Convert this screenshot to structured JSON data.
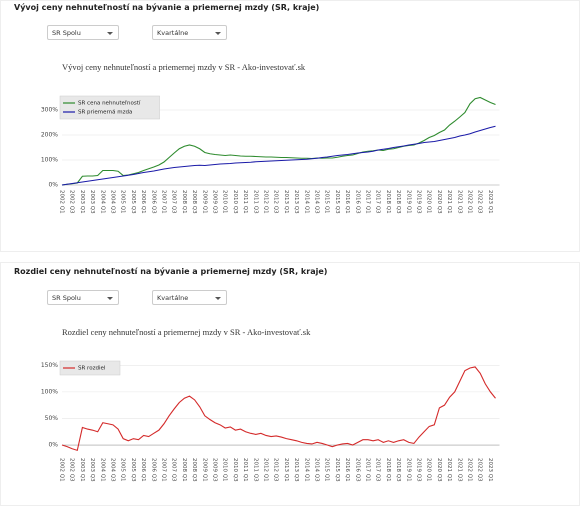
{
  "chart_data": [
    {
      "type": "line",
      "heading": "Vývoj ceny nehnuteľností na bývanie a priemernej mzdy (SR, kraje)",
      "filters": [
        "SR Spolu",
        "Kvartálne"
      ],
      "title": "Vývoj ceny nehnuteľností a priemernej mzdy v SR - Ako-investovať.sk",
      "categories": [
        "2002 Q1",
        null,
        "2002 Q3",
        null,
        "2003 Q1",
        null,
        "2003 Q3",
        null,
        "2004 Q1",
        null,
        "2004 Q3",
        null,
        "2005 Q1",
        null,
        "2005 Q3",
        null,
        "2006 Q1",
        null,
        "2006 Q3",
        null,
        "2007 Q1",
        null,
        "2007 Q3",
        null,
        "2008 Q1",
        null,
        "2008 Q3",
        null,
        "2009 Q1",
        null,
        "2009 Q3",
        null,
        "2010 Q1",
        null,
        "2010 Q3",
        null,
        "2011 Q1",
        null,
        "2011 Q3",
        null,
        "2012 Q1",
        null,
        "2012 Q3",
        null,
        "2013 Q1",
        null,
        "2013 Q3",
        null,
        "2014 Q1",
        null,
        "2014 Q3",
        null,
        "2015 Q1",
        null,
        "2015 Q3",
        null,
        "2016 Q1",
        null,
        "2016 Q3",
        null,
        "2017 Q1",
        null,
        "2017 Q3",
        null,
        "2018 Q1",
        null,
        "2018 Q3",
        null,
        "2019 Q1",
        null,
        "2019 Q3",
        null,
        "2020 Q1",
        null,
        "2020 Q3",
        null,
        "2021 Q1",
        null,
        "2021 Q3",
        null,
        "2022 Q1",
        null,
        "2022 Q3",
        null,
        "2023 Q1",
        null
      ],
      "series": [
        {
          "name": "SR cena nehnuteľností",
          "color": "#2e8b2e",
          "values": [
            0,
            3,
            5,
            8,
            35,
            36,
            36,
            38,
            58,
            58,
            58,
            55,
            38,
            40,
            45,
            50,
            58,
            65,
            72,
            80,
            92,
            110,
            128,
            145,
            155,
            160,
            155,
            145,
            130,
            125,
            122,
            120,
            118,
            120,
            118,
            116,
            115,
            115,
            114,
            113,
            112,
            112,
            111,
            110,
            110,
            109,
            108,
            107,
            107,
            106,
            108,
            107,
            108,
            108,
            111,
            115,
            118,
            120,
            126,
            132,
            135,
            137,
            140,
            138,
            143,
            145,
            150,
            155,
            158,
            160,
            168,
            178,
            190,
            198,
            210,
            220,
            240,
            255,
            272,
            290,
            325,
            345,
            350,
            340,
            330,
            322
          ]
        },
        {
          "name": "SR priemerná mzda",
          "color": "#1a1aa8",
          "values": [
            0,
            3,
            6,
            9,
            12,
            15,
            18,
            21,
            24,
            27,
            30,
            33,
            36,
            39,
            42,
            46,
            50,
            53,
            56,
            60,
            64,
            67,
            70,
            72,
            74,
            76,
            78,
            79,
            78,
            80,
            82,
            84,
            85,
            86,
            88,
            89,
            90,
            91,
            93,
            94,
            95,
            96,
            97,
            98,
            99,
            100,
            101,
            102,
            103,
            105,
            107,
            110,
            112,
            115,
            118,
            120,
            122,
            125,
            128,
            130,
            132,
            135,
            140,
            143,
            146,
            150,
            153,
            156,
            160,
            163,
            166,
            170,
            172,
            174,
            178,
            182,
            186,
            190,
            196,
            200,
            205,
            212,
            218,
            224,
            230,
            235
          ]
        }
      ],
      "ylim": [
        0,
        360
      ],
      "yticks": [
        {
          "value": 0,
          "label": "0%"
        },
        {
          "value": 100,
          "label": "100%"
        },
        {
          "value": 200,
          "label": "200%"
        },
        {
          "value": 300,
          "label": "300%"
        }
      ],
      "grid": true,
      "legend": "upper left"
    },
    {
      "type": "line",
      "heading": "Rozdiel ceny nehnuteľností na bývanie a priemernej mzdy (SR, kraje)",
      "filters": [
        "SR Spolu",
        "Kvartálne"
      ],
      "title": "Rozdiel ceny nehnuteľností a priemernej mzdy v SR - Ako-investovať.sk",
      "categories": [
        "2002 Q1",
        null,
        "2002 Q3",
        null,
        "2003 Q1",
        null,
        "2003 Q3",
        null,
        "2004 Q1",
        null,
        "2004 Q3",
        null,
        "2005 Q1",
        null,
        "2005 Q3",
        null,
        "2006 Q1",
        null,
        "2006 Q3",
        null,
        "2007 Q1",
        null,
        "2007 Q3",
        null,
        "2008 Q1",
        null,
        "2008 Q3",
        null,
        "2009 Q1",
        null,
        "2009 Q3",
        null,
        "2010 Q1",
        null,
        "2010 Q3",
        null,
        "2011 Q1",
        null,
        "2011 Q3",
        null,
        "2012 Q1",
        null,
        "2012 Q3",
        null,
        "2013 Q1",
        null,
        "2013 Q3",
        null,
        "2014 Q1",
        null,
        "2014 Q3",
        null,
        "2015 Q1",
        null,
        "2015 Q3",
        null,
        "2016 Q1",
        null,
        "2016 Q3",
        null,
        "2017 Q1",
        null,
        "2017 Q3",
        null,
        "2018 Q1",
        null,
        "2018 Q3",
        null,
        "2019 Q1",
        null,
        "2019 Q3",
        null,
        "2020 Q1",
        null,
        "2020 Q3",
        null,
        "2021 Q1",
        null,
        "2021 Q3",
        null,
        "2022 Q1",
        null,
        "2022 Q3",
        null,
        "2023 Q1",
        null
      ],
      "series": [
        {
          "name": "SR rozdiel",
          "color": "#d42a2a",
          "values": [
            0,
            -3,
            -7,
            -10,
            33,
            30,
            28,
            25,
            42,
            40,
            38,
            30,
            12,
            8,
            12,
            10,
            18,
            16,
            22,
            28,
            40,
            55,
            68,
            80,
            88,
            92,
            85,
            72,
            55,
            48,
            42,
            38,
            32,
            34,
            28,
            30,
            25,
            22,
            20,
            22,
            18,
            16,
            17,
            15,
            12,
            10,
            8,
            5,
            3,
            2,
            5,
            3,
            0,
            -3,
            0,
            2,
            3,
            0,
            5,
            10,
            10,
            8,
            10,
            5,
            8,
            5,
            8,
            10,
            5,
            3,
            15,
            25,
            35,
            38,
            70,
            75,
            90,
            100,
            120,
            140,
            145,
            147,
            135,
            115,
            100,
            88
          ]
        }
      ],
      "ylim": [
        -15,
        160
      ],
      "yticks": [
        {
          "value": 0,
          "label": "0%"
        },
        {
          "value": 50,
          "label": "50%"
        },
        {
          "value": 100,
          "label": "100%"
        },
        {
          "value": 150,
          "label": "150%"
        }
      ],
      "grid": true,
      "legend": "upper left"
    }
  ]
}
